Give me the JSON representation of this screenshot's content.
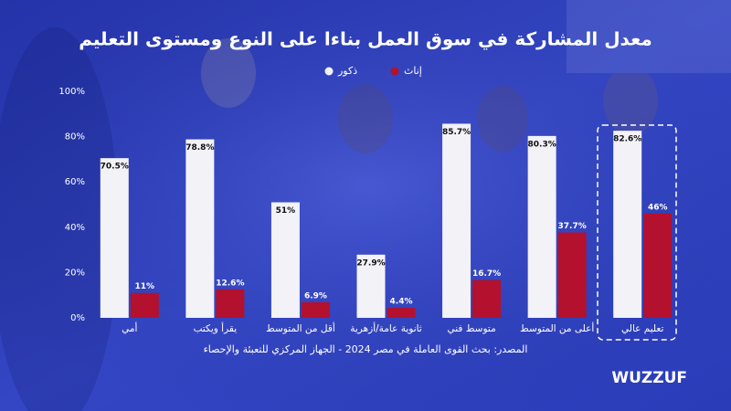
{
  "chart_data": {
    "type": "bar",
    "title": "معدل المشاركة في سوق العمل بناءا على النوع ومستوى التعليم",
    "categories": [
      "أمي",
      "يقرأ ويكتب",
      "أقل من المتوسط",
      "ثانوية عامة/أزهرية",
      "متوسط فني",
      "أعلى من المتوسط",
      "تعليم عالي"
    ],
    "series": [
      {
        "name": "ذكور",
        "color": "#f2f2f7",
        "values": [
          70.5,
          78.8,
          51,
          27.9,
          85.7,
          80.3,
          82.6
        ],
        "value_labels": [
          "70.5%",
          "78.8%",
          "51%",
          "27.9%",
          "85.7%",
          "80.3%",
          "82.6%"
        ]
      },
      {
        "name": "إناث",
        "color": "#b3112e",
        "values": [
          11,
          12.6,
          6.9,
          4.4,
          16.7,
          37.7,
          46
        ],
        "value_labels": [
          "11%",
          "12.6%",
          "6.9%",
          "4.4%",
          "16.7%",
          "37.7%",
          "46%"
        ]
      }
    ],
    "ylim": [
      0,
      100
    ],
    "yticks": [
      {
        "value": 0,
        "label": "0%"
      },
      {
        "value": 20,
        "label": "20%"
      },
      {
        "value": 40,
        "label": "40%"
      },
      {
        "value": 60,
        "label": "60%"
      },
      {
        "value": 80,
        "label": "80%"
      },
      {
        "value": 100,
        "label": "100%"
      }
    ],
    "grid": false,
    "source": "المصدر: بحث القوى العاملة في مصر 2024 - الجهاز المركزي للتعبئة والإحصاء",
    "brand": "WUZZUF"
  }
}
